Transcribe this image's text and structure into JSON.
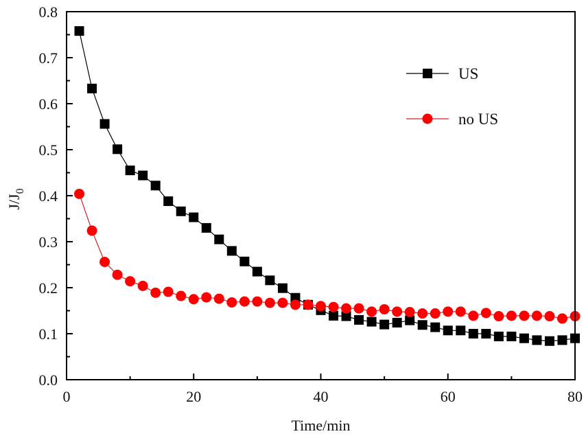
{
  "chart_data": {
    "type": "line",
    "title": "",
    "xlabel": "Time/min",
    "ylabel": "J/J",
    "ylabel_subscript": "0",
    "xlim": [
      0,
      80
    ],
    "ylim": [
      0.0,
      0.8
    ],
    "xticks": [
      0,
      20,
      40,
      60,
      80
    ],
    "xtick_labels": [
      "0",
      "20",
      "40",
      "60",
      "80"
    ],
    "xminor_step": 10,
    "yticks": [
      0.0,
      0.1,
      0.2,
      0.3,
      0.4,
      0.5,
      0.6,
      0.7,
      0.8
    ],
    "ytick_labels": [
      "0.0",
      "0.1",
      "0.2",
      "0.3",
      "0.4",
      "0.5",
      "0.6",
      "0.7",
      "0.8"
    ],
    "yminor_step": 0.05,
    "grid": false,
    "legend_position": "top-right",
    "x": [
      2,
      4,
      6,
      8,
      10,
      12,
      14,
      16,
      18,
      20,
      22,
      24,
      26,
      28,
      30,
      32,
      34,
      36,
      38,
      40,
      42,
      44,
      46,
      48,
      50,
      52,
      54,
      56,
      58,
      60,
      62,
      64,
      66,
      68,
      70,
      72,
      74,
      76,
      78,
      80
    ],
    "series": [
      {
        "name": "US",
        "color": "#000000",
        "marker": "square",
        "values": [
          0.758,
          0.633,
          0.556,
          0.501,
          0.455,
          0.444,
          0.422,
          0.388,
          0.366,
          0.353,
          0.33,
          0.305,
          0.28,
          0.257,
          0.235,
          0.216,
          0.199,
          0.178,
          0.163,
          0.151,
          0.139,
          0.138,
          0.13,
          0.126,
          0.12,
          0.124,
          0.129,
          0.119,
          0.114,
          0.107,
          0.107,
          0.1,
          0.1,
          0.094,
          0.094,
          0.09,
          0.086,
          0.084,
          0.086,
          0.09
        ]
      },
      {
        "name": "no US",
        "color": "#ff0000",
        "marker": "circle",
        "values": [
          0.404,
          0.324,
          0.256,
          0.228,
          0.214,
          0.204,
          0.189,
          0.191,
          0.182,
          0.175,
          0.179,
          0.176,
          0.168,
          0.17,
          0.17,
          0.167,
          0.167,
          0.163,
          0.163,
          0.16,
          0.158,
          0.155,
          0.155,
          0.148,
          0.153,
          0.148,
          0.147,
          0.144,
          0.144,
          0.148,
          0.148,
          0.139,
          0.145,
          0.138,
          0.139,
          0.139,
          0.139,
          0.138,
          0.133,
          0.138
        ]
      }
    ]
  }
}
